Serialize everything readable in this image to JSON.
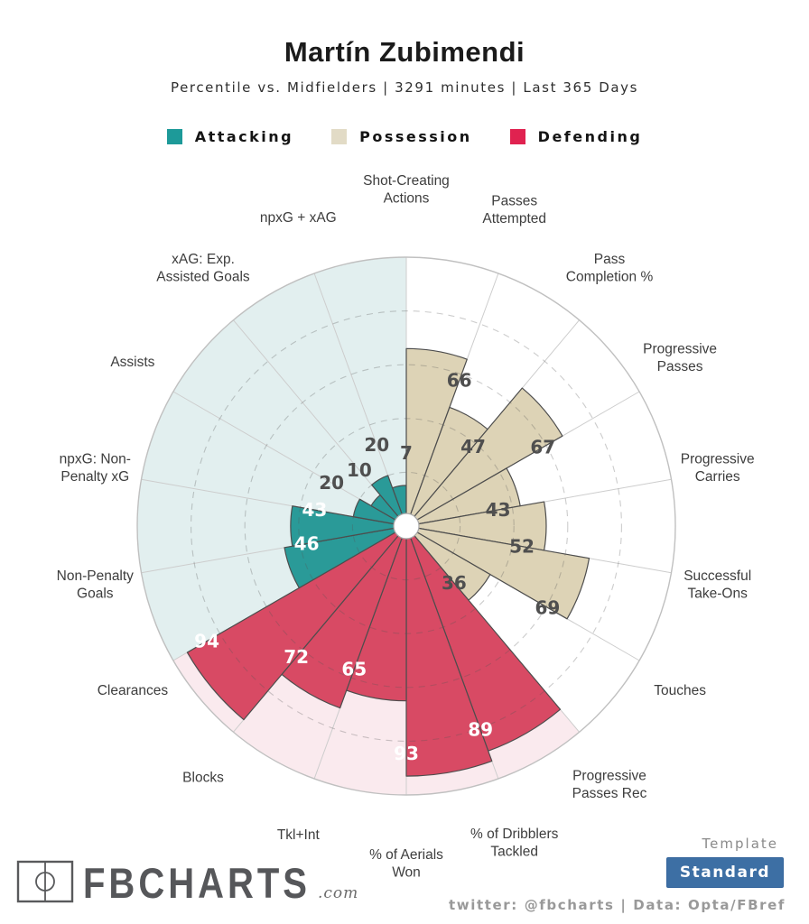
{
  "header": {
    "title": "Martín Zubimendi",
    "subtitle": "Percentile vs. Midfielders | 3291 minutes | Last 365 Days"
  },
  "legend": {
    "items": [
      {
        "label": "Attacking",
        "color": "#1d9a99"
      },
      {
        "label": "Possession",
        "color": "#e2dbc6"
      },
      {
        "label": "Defending",
        "color": "#e02250"
      }
    ]
  },
  "chart_data": {
    "type": "polar-bar",
    "title": "Percentile pizza chart",
    "rmax": 100,
    "gridlines": [
      20,
      40,
      60,
      80
    ],
    "slice_angle_deg": 20,
    "outside_label_color": "#4f4f4f",
    "groups": {
      "attacking": {
        "label": "Attacking",
        "fill": "#2a9a98",
        "bg": "#e2efef",
        "text": "#ffffff"
      },
      "possession": {
        "label": "Possession",
        "fill": "#ddd3b6",
        "bg": "#ffffff",
        "text": "#4f4f4f"
      },
      "defending": {
        "label": "Defending",
        "fill": "#d84a64",
        "bg": "#faeaee",
        "text": "#ffffff"
      }
    },
    "group_spans": [
      {
        "group": "attacking",
        "a0": -120,
        "a1": 0
      },
      {
        "group": "possession",
        "a0": 0,
        "a1": 140
      },
      {
        "group": "defending",
        "a0": 140,
        "a1": 240
      }
    ],
    "slices": [
      {
        "label_lines": [
          "Shot-Creating",
          "Actions"
        ],
        "value": 7,
        "group": "attacking",
        "a0": -20
      },
      {
        "label_lines": [
          "Passes",
          "Attempted"
        ],
        "value": 66,
        "group": "possession",
        "a0": 0
      },
      {
        "label_lines": [
          "Pass",
          "Completion %"
        ],
        "value": 47,
        "group": "possession",
        "a0": 20
      },
      {
        "label_lines": [
          "Progressive",
          "Passes"
        ],
        "value": 67,
        "group": "possession",
        "a0": 40
      },
      {
        "label_lines": [
          "Progressive",
          "Carries"
        ],
        "value": 43,
        "group": "possession",
        "a0": 60
      },
      {
        "label_lines": [
          "Successful",
          "Take-Ons"
        ],
        "value": 52,
        "group": "possession",
        "a0": 80
      },
      {
        "label_lines": [
          "Touches"
        ],
        "value": 69,
        "group": "possession",
        "a0": 100
      },
      {
        "label_lines": [
          "Progressive",
          "Passes Rec"
        ],
        "value": 36,
        "group": "possession",
        "a0": 120
      },
      {
        "label_lines": [
          "% of Dribblers",
          "Tackled"
        ],
        "value": 89,
        "group": "defending",
        "a0": 140
      },
      {
        "label_lines": [
          "% of Aerials",
          "Won"
        ],
        "value": 93,
        "group": "defending",
        "a0": 160
      },
      {
        "label_lines": [
          "Tkl+Int"
        ],
        "value": 65,
        "group": "defending",
        "a0": 180
      },
      {
        "label_lines": [
          "Blocks"
        ],
        "value": 72,
        "group": "defending",
        "a0": 200
      },
      {
        "label_lines": [
          "Clearances"
        ],
        "value": 94,
        "group": "defending",
        "a0": 220
      },
      {
        "label_lines": [
          "Non-Penalty",
          "Goals"
        ],
        "value": 46,
        "group": "attacking",
        "a0": -120
      },
      {
        "label_lines": [
          "npxG: Non-",
          "Penalty xG"
        ],
        "value": 43,
        "group": "attacking",
        "a0": -100
      },
      {
        "label_lines": [
          "Assists"
        ],
        "value": 20,
        "group": "attacking",
        "a0": -80
      },
      {
        "label_lines": [
          "xAG: Exp.",
          "Assisted Goals"
        ],
        "value": 10,
        "group": "attacking",
        "a0": -60
      },
      {
        "label_lines": [
          "npxG + xAG"
        ],
        "value": 20,
        "group": "attacking",
        "a0": -40
      }
    ]
  },
  "footer": {
    "logo_text": "FBCHARTS",
    "logo_suffix": ".com",
    "template_label": "Template",
    "template_value": "Standard",
    "credit": "twitter: @fbcharts | Data: Opta/FBref"
  }
}
